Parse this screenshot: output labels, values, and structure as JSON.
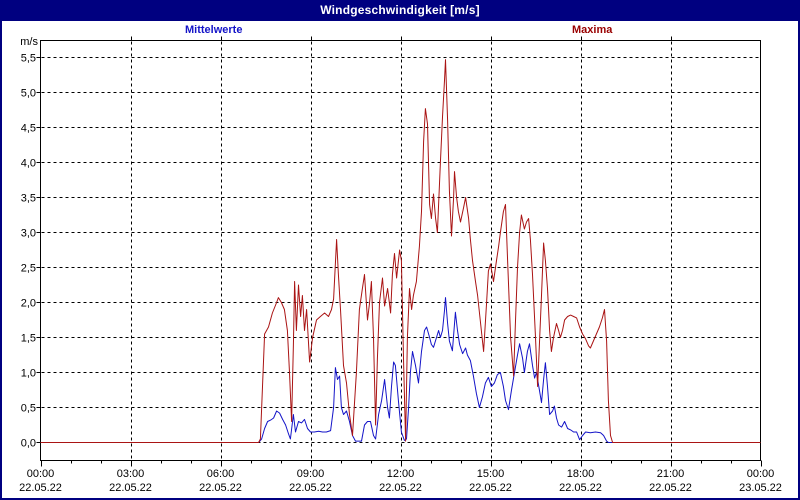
{
  "window": {
    "title": "Windgeschwindigkeit [m/s]"
  },
  "legend": {
    "mean_label": "Mittelwerte",
    "max_label": "Maxima"
  },
  "colors": {
    "frame": "#000080",
    "title_bg": "#000080",
    "title_fg": "#ffffff",
    "mean_series": "#1414c8",
    "max_series": "#aa1414",
    "mean_label": "#1414c8",
    "max_label": "#990000",
    "grid": "#000000",
    "plot_bg": "#ffffff"
  },
  "chart_data": {
    "type": "line",
    "title": "Windgeschwindigkeit [m/s]",
    "grid": "dashed",
    "legend_position": "top",
    "x_axis": {
      "unit": "hours",
      "range": [
        0,
        24
      ],
      "major_tick_hours": 3,
      "minor_tick_hours": 1,
      "tick_labels": [
        {
          "time": "00:00",
          "date": "22.05.22"
        },
        {
          "time": "03:00",
          "date": "22.05.22"
        },
        {
          "time": "06:00",
          "date": "22.05.22"
        },
        {
          "time": "09:00",
          "date": "22.05.22"
        },
        {
          "time": "12:00",
          "date": "22.05.22"
        },
        {
          "time": "15:00",
          "date": "22.05.22"
        },
        {
          "time": "18:00",
          "date": "22.05.22"
        },
        {
          "time": "21:00",
          "date": "22.05.22"
        },
        {
          "time": "00:00",
          "date": "23.05.22"
        }
      ]
    },
    "y_axis": {
      "label": "m/s",
      "range_shown": [
        0.0,
        5.5
      ],
      "tick_step": 0.5,
      "tick_labels": [
        "0,0",
        "0,5",
        "1,0",
        "1,5",
        "2,0",
        "2,5",
        "3,0",
        "3,5",
        "4,0",
        "4,5",
        "5,0",
        "5,5"
      ]
    },
    "series": [
      {
        "name": "Mittelwerte",
        "color": "#1414c8",
        "points": [
          [
            0,
            0
          ],
          [
            7.27,
            0
          ],
          [
            7.37,
            0.05
          ],
          [
            7.47,
            0.2
          ],
          [
            7.57,
            0.3
          ],
          [
            7.67,
            0.32
          ],
          [
            7.77,
            0.35
          ],
          [
            7.87,
            0.45
          ],
          [
            7.97,
            0.42
          ],
          [
            8.07,
            0.33
          ],
          [
            8.17,
            0.25
          ],
          [
            8.27,
            0.12
          ],
          [
            8.33,
            0.05
          ],
          [
            8.43,
            0.4
          ],
          [
            8.5,
            0.15
          ],
          [
            8.6,
            0.3
          ],
          [
            8.7,
            0.28
          ],
          [
            8.8,
            0.33
          ],
          [
            8.9,
            0.2
          ],
          [
            9.0,
            0.15
          ],
          [
            9.13,
            0.15
          ],
          [
            9.27,
            0.16
          ],
          [
            9.4,
            0.15
          ],
          [
            9.53,
            0.15
          ],
          [
            9.67,
            0.17
          ],
          [
            9.77,
            0.5
          ],
          [
            9.83,
            1.07
          ],
          [
            9.9,
            0.9
          ],
          [
            9.97,
            0.95
          ],
          [
            10.03,
            0.5
          ],
          [
            10.1,
            0.4
          ],
          [
            10.2,
            0.45
          ],
          [
            10.3,
            0.3
          ],
          [
            10.4,
            0.1
          ],
          [
            10.5,
            0.02
          ],
          [
            10.7,
            0.02
          ],
          [
            10.8,
            0.25
          ],
          [
            10.9,
            0.3
          ],
          [
            11.0,
            0.3
          ],
          [
            11.1,
            0.1
          ],
          [
            11.17,
            0.05
          ],
          [
            11.27,
            0.4
          ],
          [
            11.37,
            0.6
          ],
          [
            11.47,
            0.9
          ],
          [
            11.57,
            0.5
          ],
          [
            11.63,
            0.35
          ],
          [
            11.7,
            0.8
          ],
          [
            11.77,
            1.15
          ],
          [
            11.83,
            1.1
          ],
          [
            11.93,
            0.6
          ],
          [
            12.03,
            0.15
          ],
          [
            12.13,
            0.03
          ],
          [
            12.2,
            0.05
          ],
          [
            12.27,
            0.5
          ],
          [
            12.33,
            1.0
          ],
          [
            12.4,
            1.3
          ],
          [
            12.5,
            1.1
          ],
          [
            12.6,
            0.85
          ],
          [
            12.7,
            1.3
          ],
          [
            12.8,
            1.6
          ],
          [
            12.87,
            1.65
          ],
          [
            12.97,
            1.5
          ],
          [
            13.03,
            1.4
          ],
          [
            13.1,
            1.36
          ],
          [
            13.2,
            1.5
          ],
          [
            13.27,
            1.6
          ],
          [
            13.33,
            1.5
          ],
          [
            13.4,
            1.6
          ],
          [
            13.47,
            1.9
          ],
          [
            13.5,
            2.07
          ],
          [
            13.57,
            1.7
          ],
          [
            13.63,
            1.45
          ],
          [
            13.73,
            1.31
          ],
          [
            13.83,
            1.86
          ],
          [
            13.9,
            1.6
          ],
          [
            13.97,
            1.4
          ],
          [
            14.07,
            1.27
          ],
          [
            14.17,
            1.35
          ],
          [
            14.23,
            1.25
          ],
          [
            14.33,
            1.17
          ],
          [
            14.43,
            0.95
          ],
          [
            14.53,
            0.7
          ],
          [
            14.63,
            0.5
          ],
          [
            14.73,
            0.65
          ],
          [
            14.83,
            0.85
          ],
          [
            14.93,
            0.93
          ],
          [
            15.03,
            0.8
          ],
          [
            15.13,
            0.85
          ],
          [
            15.23,
            0.97
          ],
          [
            15.33,
            1.0
          ],
          [
            15.43,
            0.8
          ],
          [
            15.5,
            0.6
          ],
          [
            15.6,
            0.47
          ],
          [
            15.7,
            0.75
          ],
          [
            15.8,
            1.0
          ],
          [
            15.9,
            1.25
          ],
          [
            15.97,
            1.41
          ],
          [
            16.07,
            1.2
          ],
          [
            16.13,
            1.0
          ],
          [
            16.23,
            1.3
          ],
          [
            16.3,
            1.41
          ],
          [
            16.4,
            1.1
          ],
          [
            16.47,
            0.92
          ],
          [
            16.53,
            1.0
          ],
          [
            16.63,
            0.75
          ],
          [
            16.7,
            0.57
          ],
          [
            16.77,
            0.9
          ],
          [
            16.83,
            1.14
          ],
          [
            16.9,
            0.8
          ],
          [
            16.97,
            0.4
          ],
          [
            17.07,
            0.45
          ],
          [
            17.13,
            0.52
          ],
          [
            17.2,
            0.35
          ],
          [
            17.27,
            0.25
          ],
          [
            17.37,
            0.22
          ],
          [
            17.47,
            0.3
          ],
          [
            17.57,
            0.2
          ],
          [
            17.67,
            0.18
          ],
          [
            17.77,
            0.15
          ],
          [
            17.87,
            0.15
          ],
          [
            17.97,
            0.04
          ],
          [
            18.07,
            0.1
          ],
          [
            18.17,
            0.15
          ],
          [
            18.33,
            0.14
          ],
          [
            18.5,
            0.15
          ],
          [
            18.67,
            0.14
          ],
          [
            18.77,
            0.1
          ],
          [
            18.87,
            0.02
          ],
          [
            18.93,
            0
          ],
          [
            24,
            0
          ]
        ]
      },
      {
        "name": "Maxima",
        "color": "#aa1414",
        "points": [
          [
            0,
            0
          ],
          [
            7.27,
            0
          ],
          [
            7.33,
            0.05
          ],
          [
            7.4,
            0.8
          ],
          [
            7.47,
            1.55
          ],
          [
            7.6,
            1.65
          ],
          [
            7.73,
            1.85
          ],
          [
            7.87,
            2.0
          ],
          [
            7.93,
            2.07
          ],
          [
            8.03,
            2.0
          ],
          [
            8.13,
            1.9
          ],
          [
            8.23,
            1.6
          ],
          [
            8.3,
            1.0
          ],
          [
            8.37,
            0.3
          ],
          [
            8.43,
            1.4
          ],
          [
            8.47,
            2.3
          ],
          [
            8.53,
            1.6
          ],
          [
            8.6,
            2.25
          ],
          [
            8.67,
            1.8
          ],
          [
            8.73,
            2.1
          ],
          [
            8.8,
            1.6
          ],
          [
            8.87,
            1.9
          ],
          [
            8.97,
            1.15
          ],
          [
            9.07,
            1.5
          ],
          [
            9.2,
            1.75
          ],
          [
            9.33,
            1.8
          ],
          [
            9.47,
            1.85
          ],
          [
            9.6,
            1.8
          ],
          [
            9.7,
            1.9
          ],
          [
            9.77,
            2.05
          ],
          [
            9.87,
            2.9
          ],
          [
            9.93,
            2.4
          ],
          [
            10.0,
            1.9
          ],
          [
            10.1,
            1.1
          ],
          [
            10.2,
            0.85
          ],
          [
            10.3,
            0.4
          ],
          [
            10.4,
            0.1
          ],
          [
            10.53,
            1.0
          ],
          [
            10.63,
            1.9
          ],
          [
            10.73,
            2.2
          ],
          [
            10.8,
            2.4
          ],
          [
            10.9,
            1.75
          ],
          [
            10.97,
            2.0
          ],
          [
            11.03,
            2.3
          ],
          [
            11.1,
            1.5
          ],
          [
            11.17,
            0.25
          ],
          [
            11.23,
            1.2
          ],
          [
            11.3,
            2.0
          ],
          [
            11.4,
            2.35
          ],
          [
            11.47,
            1.95
          ],
          [
            11.57,
            2.2
          ],
          [
            11.67,
            1.85
          ],
          [
            11.73,
            2.4
          ],
          [
            11.8,
            2.7
          ],
          [
            11.87,
            2.35
          ],
          [
            11.97,
            2.75
          ],
          [
            12.03,
            2.6
          ],
          [
            12.1,
            1.2
          ],
          [
            12.17,
            0.02
          ],
          [
            12.23,
            1.5
          ],
          [
            12.3,
            2.2
          ],
          [
            12.37,
            1.9
          ],
          [
            12.43,
            2.1
          ],
          [
            12.53,
            2.3
          ],
          [
            12.63,
            2.8
          ],
          [
            12.7,
            3.3
          ],
          [
            12.77,
            4.3
          ],
          [
            12.83,
            4.77
          ],
          [
            12.9,
            4.55
          ],
          [
            12.97,
            3.4
          ],
          [
            13.03,
            3.2
          ],
          [
            13.1,
            3.55
          ],
          [
            13.17,
            3.2
          ],
          [
            13.23,
            3.0
          ],
          [
            13.33,
            4.0
          ],
          [
            13.4,
            4.65
          ],
          [
            13.47,
            5.2
          ],
          [
            13.5,
            5.47
          ],
          [
            13.57,
            4.6
          ],
          [
            13.63,
            3.6
          ],
          [
            13.7,
            2.95
          ],
          [
            13.77,
            3.5
          ],
          [
            13.8,
            3.87
          ],
          [
            13.87,
            3.5
          ],
          [
            13.93,
            3.3
          ],
          [
            14.0,
            3.15
          ],
          [
            14.1,
            3.35
          ],
          [
            14.17,
            3.5
          ],
          [
            14.27,
            3.2
          ],
          [
            14.33,
            2.9
          ],
          [
            14.4,
            2.6
          ],
          [
            14.5,
            2.3
          ],
          [
            14.57,
            2.1
          ],
          [
            14.67,
            1.7
          ],
          [
            14.77,
            1.3
          ],
          [
            14.87,
            2.0
          ],
          [
            14.93,
            2.45
          ],
          [
            15.0,
            2.55
          ],
          [
            15.1,
            2.3
          ],
          [
            15.2,
            2.6
          ],
          [
            15.27,
            2.8
          ],
          [
            15.33,
            3.0
          ],
          [
            15.43,
            3.3
          ],
          [
            15.5,
            3.4
          ],
          [
            15.57,
            2.6
          ],
          [
            15.67,
            1.5
          ],
          [
            15.77,
            0.95
          ],
          [
            15.83,
            1.7
          ],
          [
            15.9,
            2.5
          ],
          [
            15.97,
            3.0
          ],
          [
            16.03,
            3.25
          ],
          [
            16.13,
            3.05
          ],
          [
            16.2,
            3.15
          ],
          [
            16.27,
            3.2
          ],
          [
            16.33,
            2.9
          ],
          [
            16.4,
            2.4
          ],
          [
            16.5,
            1.5
          ],
          [
            16.57,
            0.8
          ],
          [
            16.63,
            1.4
          ],
          [
            16.7,
            2.1
          ],
          [
            16.77,
            2.85
          ],
          [
            16.83,
            2.6
          ],
          [
            16.9,
            2.2
          ],
          [
            16.97,
            1.6
          ],
          [
            17.03,
            1.3
          ],
          [
            17.1,
            1.5
          ],
          [
            17.2,
            1.7
          ],
          [
            17.27,
            1.6
          ],
          [
            17.33,
            1.5
          ],
          [
            17.4,
            1.6
          ],
          [
            17.47,
            1.75
          ],
          [
            17.57,
            1.8
          ],
          [
            17.67,
            1.82
          ],
          [
            17.77,
            1.8
          ],
          [
            17.87,
            1.78
          ],
          [
            17.97,
            1.65
          ],
          [
            18.07,
            1.55
          ],
          [
            18.17,
            1.48
          ],
          [
            18.27,
            1.38
          ],
          [
            18.33,
            1.35
          ],
          [
            18.43,
            1.45
          ],
          [
            18.53,
            1.55
          ],
          [
            18.63,
            1.65
          ],
          [
            18.73,
            1.78
          ],
          [
            18.8,
            1.9
          ],
          [
            18.87,
            1.45
          ],
          [
            18.93,
            0.6
          ],
          [
            19.0,
            0.1
          ],
          [
            19.07,
            0
          ],
          [
            24,
            0
          ]
        ]
      }
    ]
  }
}
